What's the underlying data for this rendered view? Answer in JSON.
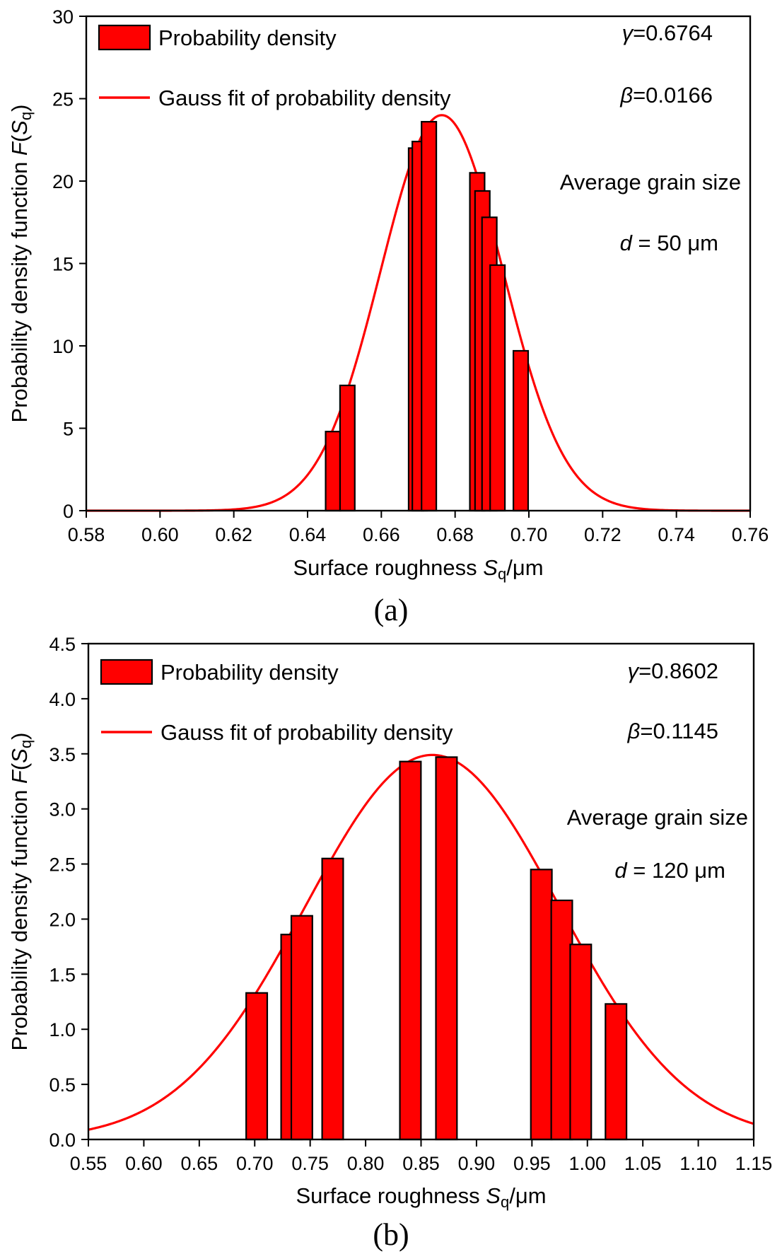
{
  "chart_data": [
    {
      "type": "bar",
      "panel_label": "(a)",
      "xlabel_prefix": "Surface roughness ",
      "xlabel_var": "S",
      "xlabel_sub": "q",
      "xlabel_suffix": "/μm",
      "ylabel_prefix": "Probability density function ",
      "ylabel_var": "F",
      "ylabel_open": "(",
      "ylabel_sub_var": "S",
      "ylabel_sub": "q",
      "ylabel_close": ")",
      "xlim": [
        0.58,
        0.76
      ],
      "ylim": [
        0,
        30
      ],
      "xticks": [
        0.58,
        0.6,
        0.62,
        0.64,
        0.66,
        0.68,
        0.7,
        0.72,
        0.74,
        0.76
      ],
      "xtick_labels": [
        "0.58",
        "0.60",
        "0.62",
        "0.64",
        "0.66",
        "0.68",
        "0.70",
        "0.72",
        "0.74",
        "0.76"
      ],
      "yticks": [
        0,
        5,
        10,
        15,
        20,
        25,
        30
      ],
      "ytick_labels": [
        "0",
        "5",
        "10",
        "15",
        "20",
        "25",
        "30"
      ],
      "bar_width": 0.004,
      "bars": {
        "name": "Probability density",
        "x": [
          0.6469,
          0.6508,
          0.6694,
          0.6704,
          0.6729,
          0.686,
          0.6874,
          0.6893,
          0.6915,
          0.6978
        ],
        "values": [
          4.8,
          7.6,
          22.0,
          22.4,
          23.6,
          20.5,
          19.4,
          17.8,
          14.9,
          9.7
        ]
      },
      "fit": {
        "name": "Gauss fit of probability density",
        "mean": 0.6764,
        "sigma": 0.0166,
        "peak": 24.0
      },
      "annotations": {
        "gamma_sym": "γ",
        "gamma_val": "=0.6764",
        "beta_sym": "β",
        "beta_val": "=0.0166",
        "grain_label": "Average grain size",
        "d_sym": "d",
        "d_val": " = 50 μm"
      },
      "colors": {
        "bar": "#ff0000",
        "bar_edge": "#000000",
        "line": "#ff0000"
      }
    },
    {
      "type": "bar",
      "panel_label": "(b)",
      "xlabel_prefix": "Surface roughness ",
      "xlabel_var": "S",
      "xlabel_sub": "q",
      "xlabel_suffix": "/μm",
      "ylabel_prefix": "Probability density function ",
      "ylabel_var": "F",
      "ylabel_open": "(",
      "ylabel_sub_var": "S",
      "ylabel_sub": "q",
      "ylabel_close": ")",
      "xlim": [
        0.55,
        1.15
      ],
      "ylim": [
        0,
        4.5
      ],
      "xticks": [
        0.55,
        0.6,
        0.65,
        0.7,
        0.75,
        0.8,
        0.85,
        0.9,
        0.95,
        1.0,
        1.05,
        1.1,
        1.15
      ],
      "xtick_labels": [
        "0.55",
        "0.60",
        "0.65",
        "0.70",
        "0.75",
        "0.80",
        "0.85",
        "0.90",
        "0.95",
        "1.00",
        "1.05",
        "1.10",
        "1.15"
      ],
      "yticks": [
        0,
        0.5,
        1.0,
        1.5,
        2.0,
        2.5,
        3.0,
        3.5,
        4.0,
        4.5
      ],
      "ytick_labels": [
        "0.0",
        "0.5",
        "1.0",
        "1.5",
        "2.0",
        "2.5",
        "3.0",
        "3.5",
        "4.0",
        "4.5"
      ],
      "bar_width": 0.019,
      "bars": {
        "name": "Probability density",
        "x": [
          0.7018,
          0.7333,
          0.7425,
          0.7703,
          0.8404,
          0.8729,
          0.9585,
          0.9769,
          0.994,
          1.0258
        ],
        "values": [
          1.33,
          1.86,
          2.03,
          2.55,
          3.43,
          3.47,
          2.45,
          2.17,
          1.77,
          1.23
        ]
      },
      "fit": {
        "name": "Gauss fit of probability density",
        "mean": 0.8602,
        "sigma": 0.1145,
        "peak": 3.49
      },
      "annotations": {
        "gamma_sym": "γ",
        "gamma_val": "=0.8602",
        "beta_sym": "β",
        "beta_val": "=0.1145",
        "grain_label": "Average grain size",
        "d_sym": "d",
        "d_val": " = 120 μm"
      },
      "colors": {
        "bar": "#ff0000",
        "bar_edge": "#000000",
        "line": "#ff0000"
      }
    }
  ]
}
